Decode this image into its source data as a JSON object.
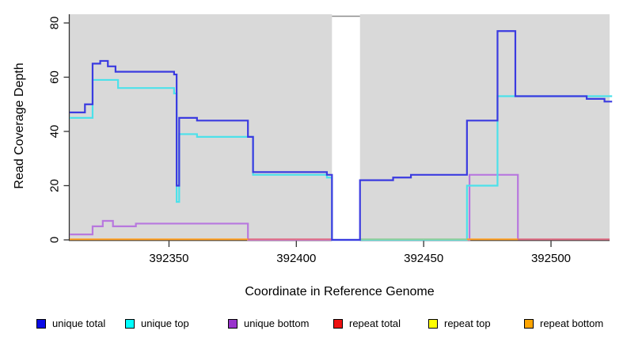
{
  "chart_data": {
    "type": "line",
    "subtype": "step-coverage-plot",
    "title": "",
    "xlabel": "Coordinate in Reference Genome",
    "ylabel": "Read Coverage Depth",
    "xlim": [
      392311,
      392523
    ],
    "ylim": [
      0,
      80
    ],
    "x_ticks": [
      392350,
      392400,
      392450,
      392500
    ],
    "y_ticks": [
      0,
      20,
      40,
      60,
      80
    ],
    "plot_background": "#d9d9d9",
    "page_background": "#ffffff",
    "grid": "off",
    "legend_position": "bottom",
    "gap": {
      "from": 392414,
      "to": 392425
    },
    "series": [
      {
        "name": "unique total",
        "legend_color": "#0a0ae6",
        "line_color": "#3b3be0",
        "visible_line": true,
        "x_end": 392524,
        "steps": [
          [
            392311,
            47
          ],
          [
            392317,
            50
          ],
          [
            392320,
            65
          ],
          [
            392323,
            66
          ],
          [
            392326,
            64
          ],
          [
            392329,
            62
          ],
          [
            392352,
            61
          ],
          [
            392353,
            20
          ],
          [
            392354,
            45
          ],
          [
            392361,
            44
          ],
          [
            392381,
            38
          ],
          [
            392383,
            25
          ],
          [
            392412,
            24
          ],
          [
            392414,
            0
          ],
          [
            392425,
            22
          ],
          [
            392438,
            23
          ],
          [
            392445,
            24
          ],
          [
            392467,
            44
          ],
          [
            392479,
            77
          ],
          [
            392486,
            53
          ],
          [
            392514,
            52
          ],
          [
            392521,
            51
          ]
        ]
      },
      {
        "name": "unique top",
        "legend_color": "#00ffff",
        "line_color": "#4ce1ea",
        "visible_line": true,
        "x_end": 392524,
        "steps": [
          [
            392311,
            45
          ],
          [
            392320,
            59
          ],
          [
            392330,
            56
          ],
          [
            392352,
            54
          ],
          [
            392353,
            14
          ],
          [
            392354,
            39
          ],
          [
            392361,
            38
          ],
          [
            392383,
            24
          ],
          [
            392412,
            23
          ],
          [
            392414,
            0
          ],
          [
            392467,
            20
          ],
          [
            392479,
            53
          ]
        ]
      },
      {
        "name": "unique bottom",
        "legend_color": "#9933cc",
        "line_color": "#b878de",
        "visible_line": true,
        "x_end": 392487,
        "steps": [
          [
            392311,
            2
          ],
          [
            392320,
            5
          ],
          [
            392324,
            7
          ],
          [
            392328,
            5
          ],
          [
            392337,
            6
          ],
          [
            392381,
            0
          ],
          [
            392468,
            24
          ],
          [
            392487,
            0
          ]
        ]
      },
      {
        "name": "repeat total",
        "legend_color": "#ee1111",
        "line_color": "#e06e85",
        "visible_line": false,
        "x_end": 392523,
        "steps": [
          [
            392311,
            0
          ]
        ]
      },
      {
        "name": "repeat top",
        "legend_color": "#ffff00",
        "line_color": "#ffff00",
        "visible_line": false,
        "x_end": 392523,
        "steps": [
          [
            392311,
            0
          ]
        ]
      },
      {
        "name": "repeat bottom",
        "legend_color": "#ffa500",
        "line_color": "#ffa127",
        "visible_line": false,
        "x_end": 392523,
        "steps": [
          [
            392311,
            0
          ]
        ]
      }
    ],
    "baseline_segments": [
      {
        "x1": 392311,
        "x2": 392381,
        "color": "#ffa127"
      },
      {
        "x1": 392381,
        "x2": 392414,
        "color": "#e06e85"
      },
      {
        "x1": 392425,
        "x2": 392467,
        "color": "#8fce9b"
      },
      {
        "x1": 392467,
        "x2": 392487,
        "color": "#ffa127"
      },
      {
        "x1": 392487,
        "x2": 392523,
        "color": "#e06e85"
      }
    ],
    "legend": {
      "items": [
        {
          "label": "unique total"
        },
        {
          "label": "unique top"
        },
        {
          "label": "unique bottom"
        },
        {
          "label": "repeat total"
        },
        {
          "label": "repeat top"
        },
        {
          "label": "repeat bottom"
        }
      ]
    }
  }
}
